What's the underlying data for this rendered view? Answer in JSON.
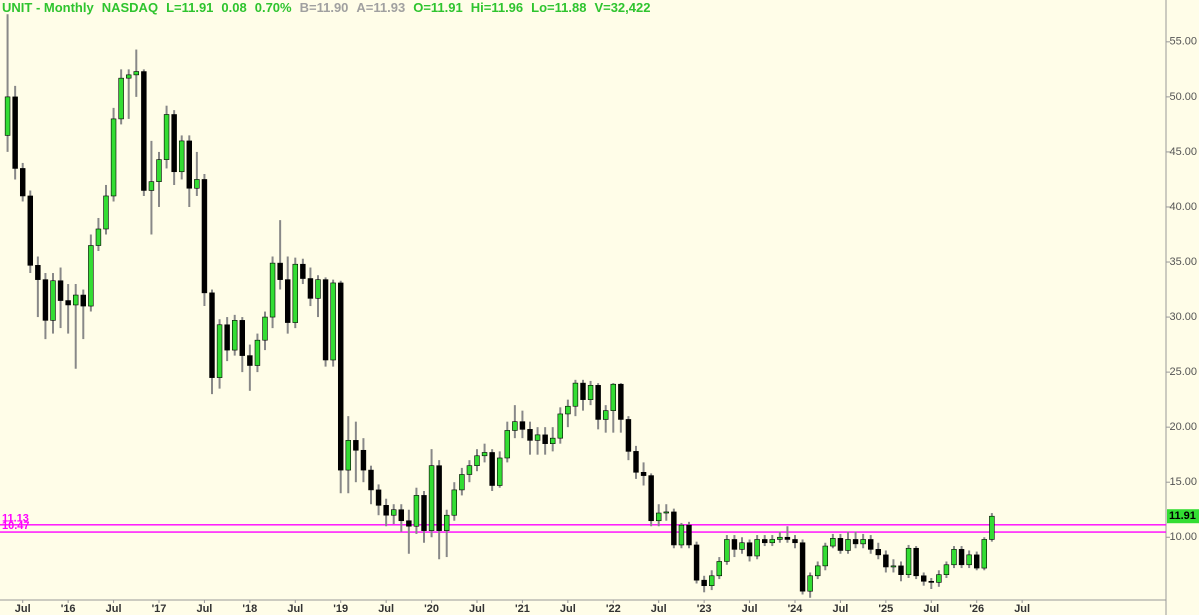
{
  "header": [
    {
      "text": "UNIT - Monthly",
      "color": "#2ec42e"
    },
    {
      "text": "NASDAQ",
      "color": "#2ec42e"
    },
    {
      "text": "L=11.91",
      "color": "#2ec42e"
    },
    {
      "text": "0.08",
      "color": "#2ec42e"
    },
    {
      "text": "0.70%",
      "color": "#2ec42e"
    },
    {
      "text": "B=11.90",
      "color": "#a0a0a0"
    },
    {
      "text": "A=11.93",
      "color": "#a0a0a0"
    },
    {
      "text": "O=11.91",
      "color": "#2ec42e"
    },
    {
      "text": "Hi=11.96",
      "color": "#2ec42e"
    },
    {
      "text": "Lo=11.88",
      "color": "#2ec42e"
    },
    {
      "text": "V=32,422",
      "color": "#2ec42e"
    }
  ],
  "chart_data": {
    "type": "candlestick",
    "up_color": "#33dd33",
    "down_color": "#000000",
    "wick_color": "#888888",
    "xlim": [
      -1,
      153
    ],
    "xticks": [
      {
        "value": 2,
        "label": "Jul"
      },
      {
        "value": 8,
        "label": "'16"
      },
      {
        "value": 14,
        "label": "Jul"
      },
      {
        "value": 20,
        "label": "'17"
      },
      {
        "value": 26,
        "label": "Jul"
      },
      {
        "value": 32,
        "label": "'18"
      },
      {
        "value": 38,
        "label": "Jul"
      },
      {
        "value": 44,
        "label": "'19"
      },
      {
        "value": 50,
        "label": "Jul"
      },
      {
        "value": 56,
        "label": "'20"
      },
      {
        "value": 62,
        "label": "Jul"
      },
      {
        "value": 68,
        "label": "'21"
      },
      {
        "value": 74,
        "label": "Jul"
      },
      {
        "value": 80,
        "label": "'22"
      },
      {
        "value": 86,
        "label": "Jul"
      },
      {
        "value": 92,
        "label": "'23"
      },
      {
        "value": 98,
        "label": "Jul"
      },
      {
        "value": 104,
        "label": "'24"
      },
      {
        "value": 110,
        "label": "Jul"
      },
      {
        "value": 116,
        "label": "'25"
      },
      {
        "value": 122,
        "label": "Jul"
      },
      {
        "value": 128,
        "label": "'26"
      },
      {
        "value": 134,
        "label": "Jul"
      }
    ],
    "ylim": [
      4.3,
      58.8
    ],
    "yticks": [
      {
        "value": 10,
        "label": "10.00"
      },
      {
        "value": 15,
        "label": "15.00"
      },
      {
        "value": 20,
        "label": "20.00"
      },
      {
        "value": 25,
        "label": "25.00"
      },
      {
        "value": 30,
        "label": "30.00"
      },
      {
        "value": 35,
        "label": "35.00"
      },
      {
        "value": 40,
        "label": "40.00"
      },
      {
        "value": 45,
        "label": "45.00"
      },
      {
        "value": 50,
        "label": "50.00"
      },
      {
        "value": 55,
        "label": "55.00"
      }
    ],
    "hlines": [
      {
        "value": 11.13,
        "color": "#ff00ff"
      },
      {
        "value": 10.47,
        "color": "#ff00ff"
      }
    ],
    "open": [
      46.5,
      50,
      43.5,
      41,
      34.7,
      33.4,
      29.7,
      33.3,
      31.5,
      31.1,
      32,
      31,
      36.5,
      38,
      41,
      48,
      51.7,
      52,
      52.3,
      41.5,
      42.3,
      44.3,
      48.4,
      43.2,
      46,
      41.7,
      42.5,
      32.2,
      24.5,
      29.3,
      27,
      29.7,
      26.5,
      25.6,
      27.9,
      30,
      34.9,
      33.4,
      29.5,
      34.8,
      33.5,
      31.7,
      33.4,
      26.1,
      33.1,
      16.1,
      18.8,
      17.9,
      16.1,
      14.3,
      12.9,
      12,
      12.5,
      11.5,
      11,
      13.8,
      10.6,
      16.5,
      10.6,
      12,
      14.3,
      15.7,
      16.5,
      17.4,
      17.7,
      14.7,
      17.2,
      19.7,
      20.5,
      19.8,
      18.8,
      19.3,
      18.5,
      19,
      21.2,
      21.9,
      24,
      22.5,
      23.8,
      20.7,
      21.5,
      23.9,
      20.7,
      17.8,
      15.9,
      15.6,
      11.5,
      12.2,
      12.3,
      9.3,
      11.1,
      9.3,
      6.1,
      5.6,
      6.5,
      7.8,
      9.8,
      8.9,
      9.5,
      8.3,
      9.8,
      9.5,
      9.8,
      10,
      9.8,
      9.5,
      5.1,
      6.5,
      7.4,
      9.2,
      9.9,
      8.8,
      9.8,
      9.4,
      9.8,
      8.9,
      8.4,
      7.3,
      7.4,
      6.6,
      9.0,
      6.5,
      6.0,
      5.9,
      6.6,
      7.5,
      8.9,
      7.5,
      8.4,
      7.2,
      9.8
    ],
    "high": [
      57.5,
      51,
      44,
      41.5,
      35.5,
      34,
      34,
      34.5,
      33,
      33,
      32.5,
      37.5,
      39,
      42,
      49,
      52.5,
      52.5,
      54.3,
      52.5,
      46,
      45,
      49.2,
      48.8,
      46.5,
      46.5,
      45,
      43,
      32.5,
      29.8,
      30,
      30.2,
      30,
      27.5,
      28.5,
      30.5,
      35.5,
      38.8,
      35.5,
      35.4,
      35.3,
      34.5,
      33.8,
      33.6,
      33.4,
      33.3,
      21,
      20.5,
      19,
      16.5,
      14.8,
      13.5,
      13,
      13,
      12.5,
      14.5,
      14.2,
      18,
      17,
      12.5,
      15,
      16.3,
      17,
      18,
      18.5,
      18,
      17.8,
      20.5,
      22,
      21.5,
      20.5,
      20,
      20,
      20,
      21.8,
      22.5,
      24.3,
      24.3,
      24.2,
      24,
      22,
      24,
      24,
      21,
      18.3,
      16.8,
      15.8,
      13,
      13,
      12.6,
      11.3,
      11.4,
      9.6,
      6.5,
      7,
      8.2,
      10.2,
      10.2,
      10,
      9.8,
      10.2,
      10.2,
      10.2,
      10.5,
      11,
      10.2,
      9.8,
      6.8,
      7.8,
      9.5,
      10.3,
      10.3,
      10.5,
      10.5,
      10.3,
      10.2,
      9.5,
      8.8,
      8,
      7.8,
      9.3,
      9.2,
      6.8,
      6.3,
      7,
      7.8,
      9.2,
      9.2,
      8.8,
      8.7,
      10,
      12.2
    ],
    "low": [
      45,
      42.5,
      40.5,
      34,
      30,
      28,
      28.5,
      29,
      28.5,
      25.3,
      28,
      30.5,
      36,
      37.5,
      40.5,
      47.5,
      48,
      50,
      41,
      37.5,
      40,
      43.5,
      42,
      42.5,
      40,
      41,
      31,
      23,
      23.5,
      26,
      26.5,
      25,
      23.3,
      25,
      27,
      29,
      32.5,
      28.5,
      29,
      33,
      31,
      30,
      25.5,
      25.5,
      14,
      14,
      15,
      15,
      13,
      12,
      11,
      11.2,
      10.5,
      8.5,
      10.3,
      9.5,
      10,
      8,
      8.2,
      11.5,
      13.8,
      15,
      16,
      16.8,
      14.2,
      14.5,
      16.8,
      19,
      19,
      17.5,
      17.5,
      17.5,
      17.8,
      18.5,
      20,
      21,
      21.5,
      22,
      19.8,
      19.5,
      19.5,
      19.5,
      17,
      15.3,
      14.7,
      11,
      11,
      11.5,
      9,
      9,
      9,
      5.8,
      5,
      5.2,
      6.2,
      7.5,
      8.2,
      8.5,
      7.8,
      8,
      9.2,
      9.2,
      9.5,
      9.5,
      9,
      4.8,
      4.5,
      6.2,
      7,
      9,
      8.5,
      8.5,
      9,
      9,
      8.5,
      8,
      6.8,
      6.8,
      6,
      6.3,
      6.2,
      5.6,
      5.3,
      5.5,
      6.3,
      7.2,
      7.2,
      7.2,
      7,
      7,
      9.6
    ],
    "close": [
      50,
      43.5,
      41,
      34.7,
      33.4,
      29.7,
      33.3,
      31.5,
      31.1,
      32,
      31,
      36.5,
      38,
      41,
      48,
      51.7,
      52,
      52.3,
      41.5,
      42.3,
      44.3,
      48.4,
      43.2,
      46,
      41.7,
      42.5,
      32.2,
      24.5,
      29.3,
      27,
      29.7,
      26.5,
      25.6,
      27.9,
      30,
      34.9,
      33.4,
      29.5,
      34.8,
      33.5,
      31.7,
      33.4,
      26.1,
      33.1,
      16.1,
      18.8,
      17.9,
      16.1,
      14.3,
      12.9,
      12,
      12.5,
      11.5,
      11,
      13.8,
      10.6,
      16.5,
      10.6,
      12,
      14.3,
      15.7,
      16.5,
      17.4,
      17.7,
      14.7,
      17.2,
      19.7,
      20.5,
      19.8,
      18.8,
      19.3,
      18.5,
      19,
      21.2,
      21.9,
      24,
      22.5,
      23.8,
      20.7,
      21.5,
      23.9,
      20.7,
      17.8,
      15.9,
      15.6,
      11.5,
      12.2,
      12.3,
      9.3,
      11.1,
      9.3,
      6.1,
      5.6,
      6.5,
      7.8,
      9.8,
      8.9,
      9.5,
      8.3,
      9.8,
      9.5,
      9.8,
      10,
      9.8,
      9.5,
      5.1,
      6.5,
      7.4,
      9.2,
      9.9,
      8.8,
      9.8,
      9.4,
      9.8,
      8.9,
      8.4,
      7.3,
      7.4,
      6.6,
      9.0,
      6.5,
      6.0,
      5.9,
      6.6,
      7.5,
      8.9,
      7.5,
      8.4,
      7.2,
      9.8,
      11.91
    ]
  }
}
